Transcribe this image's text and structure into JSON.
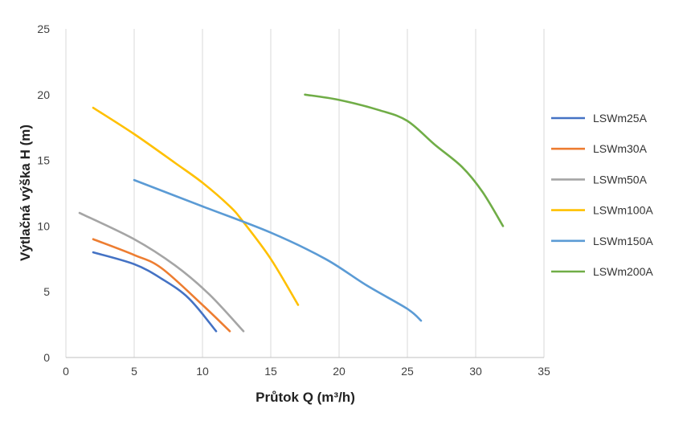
{
  "chart_data": {
    "type": "line",
    "title": "",
    "xlabel": "Průtok Q (m³/h)",
    "ylabel": "Výtlačná výška H (m)",
    "xlim": [
      0,
      35
    ],
    "ylim": [
      0,
      25
    ],
    "xticks": [
      0,
      5,
      10,
      15,
      20,
      25,
      30,
      35
    ],
    "yticks": [
      0,
      5,
      10,
      15,
      20,
      25
    ],
    "grid": "vertical",
    "legend_position": "right",
    "series": [
      {
        "name": "LSWm25A",
        "color": "#4472C4",
        "points": [
          [
            2,
            8
          ],
          [
            5,
            7.1
          ],
          [
            7,
            6
          ],
          [
            9,
            4.5
          ],
          [
            11,
            2
          ]
        ]
      },
      {
        "name": "LSWm30A",
        "color": "#ED7D31",
        "points": [
          [
            2,
            9
          ],
          [
            5,
            7.8
          ],
          [
            7,
            6.8
          ],
          [
            10,
            4
          ],
          [
            12,
            2
          ]
        ]
      },
      {
        "name": "LSWm50A",
        "color": "#A5A5A5",
        "points": [
          [
            1,
            11
          ],
          [
            5,
            9
          ],
          [
            8,
            7
          ],
          [
            10.5,
            4.8
          ],
          [
            13,
            2
          ]
        ]
      },
      {
        "name": "LSWm100A",
        "color": "#FFC000",
        "points": [
          [
            2,
            19
          ],
          [
            5,
            17
          ],
          [
            8,
            14.8
          ],
          [
            10,
            13.3
          ],
          [
            12,
            11.5
          ],
          [
            13,
            10.3
          ],
          [
            15,
            7.5
          ],
          [
            17,
            4
          ]
        ]
      },
      {
        "name": "LSWm150A",
        "color": "#5B9BD5",
        "points": [
          [
            5,
            13.5
          ],
          [
            10,
            11.5
          ],
          [
            15,
            9.5
          ],
          [
            19,
            7.5
          ],
          [
            22,
            5.5
          ],
          [
            25,
            3.7
          ],
          [
            26,
            2.8
          ]
        ]
      },
      {
        "name": "LSWm200A",
        "color": "#70AD47",
        "points": [
          [
            17.5,
            20
          ],
          [
            20,
            19.6
          ],
          [
            23,
            18.8
          ],
          [
            25,
            18
          ],
          [
            27,
            16.2
          ],
          [
            29,
            14.5
          ],
          [
            30.5,
            12.6
          ],
          [
            32,
            10
          ]
        ]
      }
    ]
  }
}
